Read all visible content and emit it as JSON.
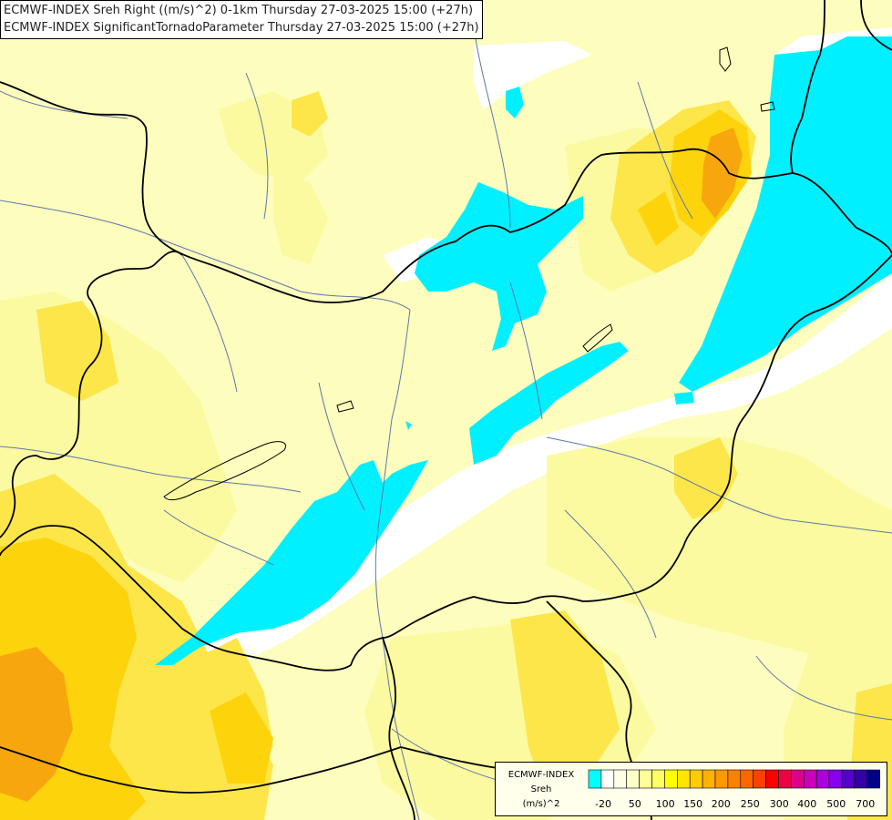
{
  "title": {
    "line1": "ECMWF-INDEX Sreh Right ((m/s)^2) 0-1km Thursday 27-03-2025 15:00 (+27h)",
    "line2": "ECMWF-INDEX SignificantTornadoParameter Thursday 27-03-2025 15:00 (+27h)"
  },
  "legend": {
    "name": "ECMWF-INDEX",
    "variable": "Sreh",
    "unit": "(m/s)^2",
    "colors": [
      "#00ffff",
      "#ffffff",
      "#ffffe6",
      "#ffffc8",
      "#ffff99",
      "#ffff66",
      "#ffff00",
      "#ffe600",
      "#ffcc00",
      "#ffb300",
      "#ff9900",
      "#ff8000",
      "#ff6600",
      "#ff4000",
      "#ff0000",
      "#ee0044",
      "#dd0088",
      "#cc00bb",
      "#aa00dd",
      "#8800ee",
      "#5500cc",
      "#3300aa",
      "#000088"
    ],
    "ticks": [
      "-20",
      "50",
      "100",
      "150",
      "200",
      "250",
      "300",
      "400",
      "500",
      "700"
    ]
  },
  "colors": {
    "cyan": "#00f0ff",
    "pale_yellow": "#fdfdbe",
    "lemon": "#fbfaa0",
    "yellow": "#fde64a",
    "gold": "#fdd30c",
    "orange": "#f8a60e",
    "border": "#000000",
    "river": "#5e78a8"
  }
}
